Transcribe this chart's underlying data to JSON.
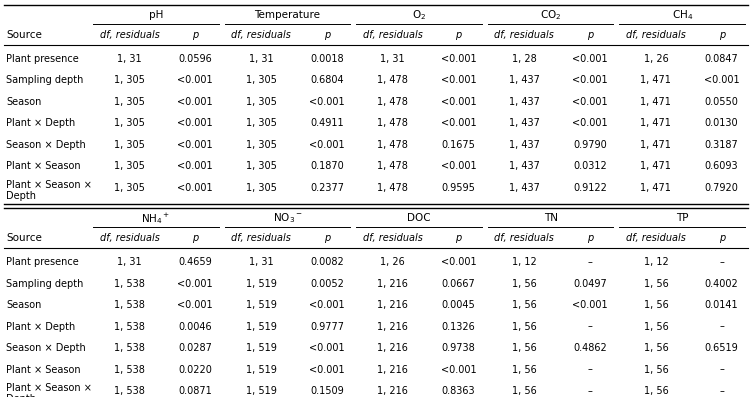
{
  "top_headers": [
    "pH",
    "Temperature",
    "O$_2$",
    "CO$_2$",
    "CH$_4$"
  ],
  "bottom_headers": [
    "NH$_4$$^+$",
    "NO$_3$$^-$",
    "DOC",
    "TN",
    "TP"
  ],
  "source_col_header": "Source",
  "row_labels": [
    "Plant presence",
    "Sampling depth",
    "Season",
    "Plant × Depth",
    "Season × Depth",
    "Plant × Season",
    "Plant × Season ×\nDepth"
  ],
  "top_data": [
    [
      "1, 31",
      "0.0596",
      "1, 31",
      "0.0018",
      "1, 31",
      "<0.001",
      "1, 28",
      "<0.001",
      "1, 26",
      "0.0847"
    ],
    [
      "1, 305",
      "<0.001",
      "1, 305",
      "0.6804",
      "1, 478",
      "<0.001",
      "1, 437",
      "<0.001",
      "1, 471",
      "<0.001"
    ],
    [
      "1, 305",
      "<0.001",
      "1, 305",
      "<0.001",
      "1, 478",
      "<0.001",
      "1, 437",
      "<0.001",
      "1, 471",
      "0.0550"
    ],
    [
      "1, 305",
      "<0.001",
      "1, 305",
      "0.4911",
      "1, 478",
      "<0.001",
      "1, 437",
      "<0.001",
      "1, 471",
      "0.0130"
    ],
    [
      "1, 305",
      "<0.001",
      "1, 305",
      "<0.001",
      "1, 478",
      "0.1675",
      "1, 437",
      "0.9790",
      "1, 471",
      "0.3187"
    ],
    [
      "1, 305",
      "<0.001",
      "1, 305",
      "0.1870",
      "1, 478",
      "<0.001",
      "1, 437",
      "0.0312",
      "1, 471",
      "0.6093"
    ],
    [
      "1, 305",
      "<0.001",
      "1, 305",
      "0.2377",
      "1, 478",
      "0.9595",
      "1, 437",
      "0.9122",
      "1, 471",
      "0.7920"
    ]
  ],
  "bottom_data": [
    [
      "1, 31",
      "0.4659",
      "1, 31",
      "0.0082",
      "1, 26",
      "<0.001",
      "1, 12",
      "–",
      "1, 12",
      "–"
    ],
    [
      "1, 538",
      "<0.001",
      "1, 519",
      "0.0052",
      "1, 216",
      "0.0667",
      "1, 56",
      "0.0497",
      "1, 56",
      "0.4002"
    ],
    [
      "1, 538",
      "<0.001",
      "1, 519",
      "<0.001",
      "1, 216",
      "0.0045",
      "1, 56",
      "<0.001",
      "1, 56",
      "0.0141"
    ],
    [
      "1, 538",
      "0.0046",
      "1, 519",
      "0.9777",
      "1, 216",
      "0.1326",
      "1, 56",
      "–",
      "1, 56",
      "–"
    ],
    [
      "1, 538",
      "0.0287",
      "1, 519",
      "<0.001",
      "1, 216",
      "0.9738",
      "1, 56",
      "0.4862",
      "1, 56",
      "0.6519"
    ],
    [
      "1, 538",
      "0.0220",
      "1, 519",
      "<0.001",
      "1, 216",
      "<0.001",
      "1, 56",
      "–",
      "1, 56",
      "–"
    ],
    [
      "1, 538",
      "0.0871",
      "1, 519",
      "0.1509",
      "1, 216",
      "0.8363",
      "1, 56",
      "–",
      "1, 56",
      "–"
    ]
  ],
  "bg_color": "#ffffff",
  "text_color": "#000000"
}
